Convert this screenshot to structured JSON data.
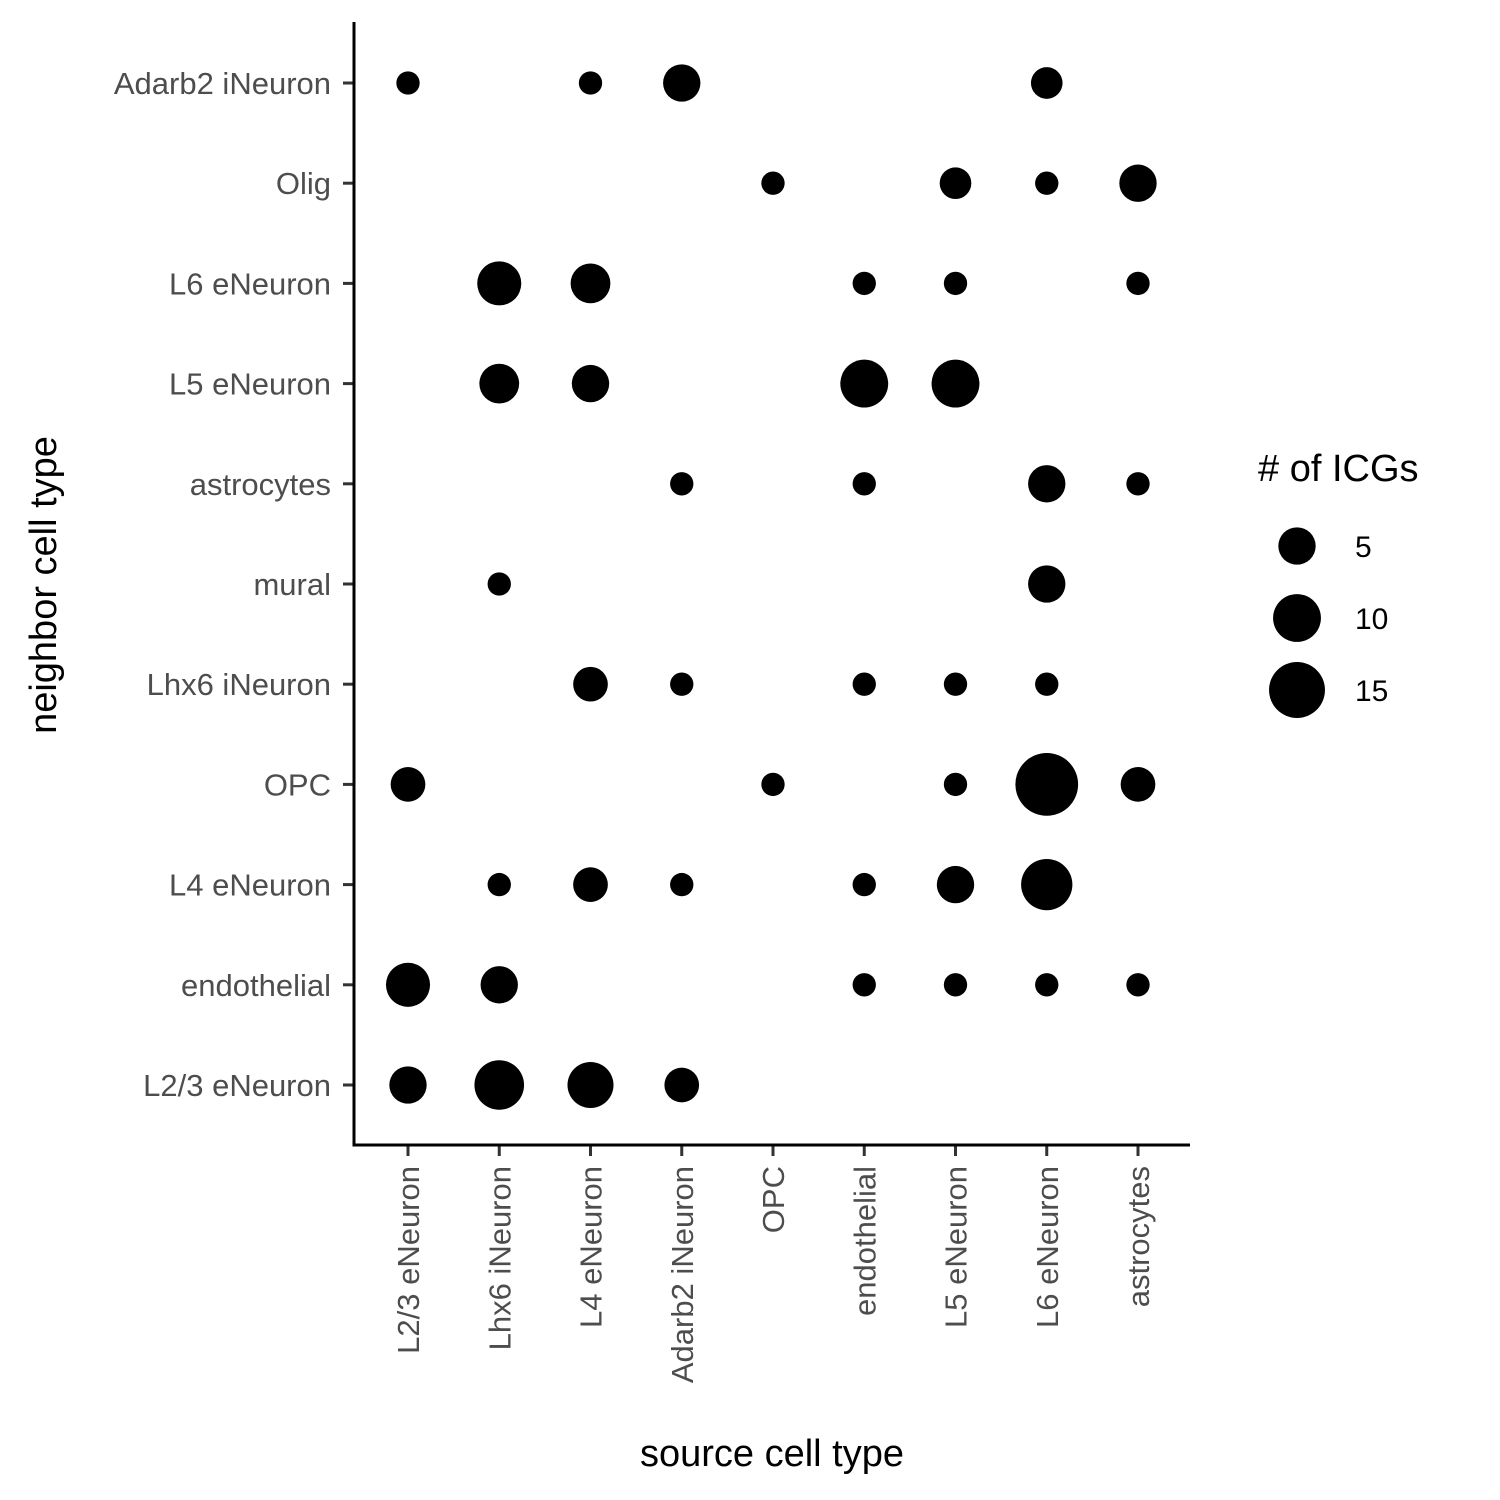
{
  "chart_data": {
    "type": "scatter",
    "xlabel": "source cell type",
    "ylabel": "neighbor cell type",
    "x_categories": [
      "L2/3 eNeuron",
      "Lhx6 iNeuron",
      "L4 eNeuron",
      "Adarb2 iNeuron",
      "OPC",
      "endothelial",
      "L5 eNeuron",
      "L6 eNeuron",
      "astrocytes"
    ],
    "y_categories": [
      "L2/3 eNeuron",
      "endothelial",
      "L4 eNeuron",
      "OPC",
      "Lhx6 iNeuron",
      "mural",
      "astrocytes",
      "L5 eNeuron",
      "L6 eNeuron",
      "Olig",
      "Adarb2 iNeuron"
    ],
    "size_legend": {
      "title": "# of ICGs",
      "values": [
        5,
        10,
        15
      ],
      "labels": [
        "5",
        "10",
        "15"
      ]
    },
    "grid": false,
    "legend_position": "right",
    "color": "#000000",
    "points": [
      {
        "x": "L2/3 eNeuron",
        "y": "Adarb2 iNeuron",
        "size": 1
      },
      {
        "x": "L4 eNeuron",
        "y": "Adarb2 iNeuron",
        "size": 1
      },
      {
        "x": "Adarb2 iNeuron",
        "y": "Adarb2 iNeuron",
        "size": 5
      },
      {
        "x": "L6 eNeuron",
        "y": "Adarb2 iNeuron",
        "size": 3
      },
      {
        "x": "OPC",
        "y": "Olig",
        "size": 1
      },
      {
        "x": "L5 eNeuron",
        "y": "Olig",
        "size": 3
      },
      {
        "x": "L6 eNeuron",
        "y": "Olig",
        "size": 1
      },
      {
        "x": "astrocytes",
        "y": "Olig",
        "size": 5
      },
      {
        "x": "Lhx6 iNeuron",
        "y": "L6 eNeuron",
        "size": 8
      },
      {
        "x": "L4 eNeuron",
        "y": "L6 eNeuron",
        "size": 6
      },
      {
        "x": "endothelial",
        "y": "L6 eNeuron",
        "size": 1
      },
      {
        "x": "L5 eNeuron",
        "y": "L6 eNeuron",
        "size": 1
      },
      {
        "x": "astrocytes",
        "y": "L6 eNeuron",
        "size": 1
      },
      {
        "x": "Lhx6 iNeuron",
        "y": "L5 eNeuron",
        "size": 6
      },
      {
        "x": "L4 eNeuron",
        "y": "L5 eNeuron",
        "size": 5
      },
      {
        "x": "endothelial",
        "y": "L5 eNeuron",
        "size": 10
      },
      {
        "x": "L5 eNeuron",
        "y": "L5 eNeuron",
        "size": 10
      },
      {
        "x": "Adarb2 iNeuron",
        "y": "astrocytes",
        "size": 1
      },
      {
        "x": "endothelial",
        "y": "astrocytes",
        "size": 1
      },
      {
        "x": "L6 eNeuron",
        "y": "astrocytes",
        "size": 5
      },
      {
        "x": "astrocytes",
        "y": "astrocytes",
        "size": 1
      },
      {
        "x": "Lhx6 iNeuron",
        "y": "mural",
        "size": 1
      },
      {
        "x": "L6 eNeuron",
        "y": "mural",
        "size": 5
      },
      {
        "x": "L4 eNeuron",
        "y": "Lhx6 iNeuron",
        "size": 4
      },
      {
        "x": "Adarb2 iNeuron",
        "y": "Lhx6 iNeuron",
        "size": 1
      },
      {
        "x": "endothelial",
        "y": "Lhx6 iNeuron",
        "size": 1
      },
      {
        "x": "L5 eNeuron",
        "y": "Lhx6 iNeuron",
        "size": 1
      },
      {
        "x": "L6 eNeuron",
        "y": "Lhx6 iNeuron",
        "size": 1
      },
      {
        "x": "L2/3 eNeuron",
        "y": "OPC",
        "size": 4
      },
      {
        "x": "OPC",
        "y": "OPC",
        "size": 1
      },
      {
        "x": "L5 eNeuron",
        "y": "OPC",
        "size": 1
      },
      {
        "x": "L6 eNeuron",
        "y": "OPC",
        "size": 20
      },
      {
        "x": "astrocytes",
        "y": "OPC",
        "size": 4
      },
      {
        "x": "Lhx6 iNeuron",
        "y": "L4 eNeuron",
        "size": 1
      },
      {
        "x": "L4 eNeuron",
        "y": "L4 eNeuron",
        "size": 4
      },
      {
        "x": "Adarb2 iNeuron",
        "y": "L4 eNeuron",
        "size": 1
      },
      {
        "x": "endothelial",
        "y": "L4 eNeuron",
        "size": 1
      },
      {
        "x": "L5 eNeuron",
        "y": "L4 eNeuron",
        "size": 5
      },
      {
        "x": "L6 eNeuron",
        "y": "L4 eNeuron",
        "size": 12
      },
      {
        "x": "L2/3 eNeuron",
        "y": "endothelial",
        "size": 8
      },
      {
        "x": "Lhx6 iNeuron",
        "y": "endothelial",
        "size": 5
      },
      {
        "x": "endothelial",
        "y": "endothelial",
        "size": 1
      },
      {
        "x": "L5 eNeuron",
        "y": "endothelial",
        "size": 1
      },
      {
        "x": "L6 eNeuron",
        "y": "endothelial",
        "size": 1
      },
      {
        "x": "astrocytes",
        "y": "endothelial",
        "size": 1
      },
      {
        "x": "L2/3 eNeuron",
        "y": "L2/3 eNeuron",
        "size": 5
      },
      {
        "x": "Lhx6 iNeuron",
        "y": "L2/3 eNeuron",
        "size": 11
      },
      {
        "x": "L4 eNeuron",
        "y": "L2/3 eNeuron",
        "size": 9
      },
      {
        "x": "Adarb2 iNeuron",
        "y": "L2/3 eNeuron",
        "size": 4
      }
    ]
  }
}
